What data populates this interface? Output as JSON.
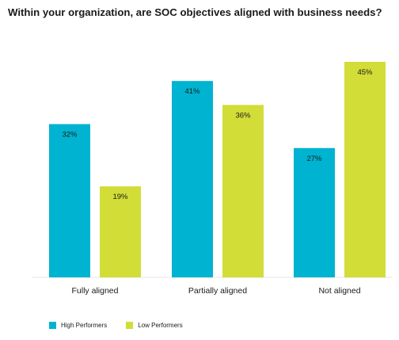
{
  "chart_data": {
    "type": "bar",
    "title": "Within your organization, are SOC objectives aligned with business needs?",
    "categories": [
      "Fully aligned",
      "Partially aligned",
      "Not aligned"
    ],
    "series": [
      {
        "name": "High Performers",
        "color": "#00b3d1",
        "values": [
          32,
          41,
          27
        ],
        "labels": [
          "32%",
          "41%",
          "27%"
        ]
      },
      {
        "name": "Low Performers",
        "color": "#d2dd37",
        "values": [
          19,
          36,
          45
        ],
        "labels": [
          "19%",
          "36%",
          "45%"
        ]
      }
    ],
    "ylim": [
      0,
      45
    ],
    "grid": false,
    "legend_position": "bottom-left"
  }
}
